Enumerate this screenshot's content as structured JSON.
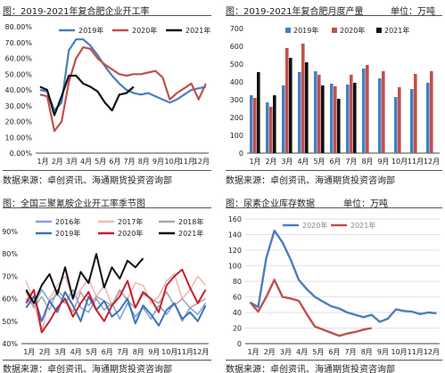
{
  "panels": [
    {
      "title": "图：2019-2021年复合肥企业开工率",
      "unit": "",
      "source": "数据来源：卓创资讯、海通期货投资咨询部"
    },
    {
      "title": "图：2019-2021年复合肥月度产量",
      "unit": "单位：万吨",
      "source": "数据来源：卓创资讯、海通期货投资咨询部"
    },
    {
      "title": "图：全国三聚氰胺企业开工率季节图",
      "unit": "",
      "source": "数据来源：卓创资讯、海通期货投资咨询部"
    },
    {
      "title": "图：尿素企业库存数据",
      "unit": "单位：万吨",
      "source": "数据来源：卓创资讯、海通期货投资咨询部"
    }
  ],
  "chart_data": [
    {
      "type": "line",
      "xticks": [
        "1月",
        "2月",
        "3月",
        "4月",
        "5月",
        "6月",
        "7月",
        "8月",
        "9月",
        "10月",
        "11月",
        "12月"
      ],
      "yticks": [
        "0.00%",
        "10.00%",
        "20.00%",
        "30.00%",
        "40.00%",
        "50.00%",
        "60.00%",
        "70.00%",
        "80.00%"
      ],
      "ylim": [
        0,
        80
      ],
      "legend_position": "top",
      "colors": {
        "2019年": "#4a7ebb",
        "2020年": "#c0504d",
        "2021年": "#111111"
      },
      "series": [
        {
          "name": "2019年",
          "x": [
            0,
            0.5,
            1,
            1.5,
            2,
            2.5,
            3,
            3.5,
            4,
            4.5,
            5,
            5.5,
            6,
            6.5,
            7,
            7.5,
            8,
            8.5,
            9,
            9.5,
            10,
            10.5,
            11,
            11.5
          ],
          "values": [
            40,
            39,
            27,
            32,
            65,
            72,
            72,
            68,
            62,
            55,
            49,
            44,
            40,
            38,
            37,
            38,
            36,
            34,
            32,
            34,
            37,
            40,
            41,
            42
          ]
        },
        {
          "name": "2020年",
          "x": [
            0,
            0.5,
            1,
            1.5,
            2,
            2.5,
            3,
            3.5,
            4,
            4.5,
            5,
            5.5,
            6,
            6.5,
            7,
            7.5,
            8,
            8.5,
            9,
            9.5,
            10,
            10.5,
            11,
            11.5
          ],
          "values": [
            37,
            36,
            14,
            20,
            45,
            60,
            67,
            66,
            60,
            56,
            53,
            50,
            49,
            50,
            50,
            51,
            52,
            48,
            34,
            38,
            41,
            44,
            34,
            44
          ]
        },
        {
          "name": "2021年",
          "x": [
            0,
            0.5,
            1,
            1.5,
            2,
            2.5,
            3,
            3.5,
            4,
            4.5,
            5,
            5.5,
            6,
            6.5
          ],
          "values": [
            42,
            40,
            24,
            36,
            49,
            49,
            44,
            42,
            39,
            32,
            27,
            37,
            38,
            42
          ]
        }
      ]
    },
    {
      "type": "bar",
      "categories": [
        "1月",
        "2月",
        "3月",
        "4月",
        "5月",
        "6月",
        "7月",
        "8月",
        "9月",
        "10月",
        "11月",
        "12月"
      ],
      "yticks": [
        "0",
        "100",
        "200",
        "300",
        "400",
        "500",
        "600",
        "700"
      ],
      "ylim": [
        0,
        700
      ],
      "legend_position": "top",
      "colors": {
        "2019年": "#4a7ebb",
        "2020年": "#c0504d",
        "2021年": "#111111"
      },
      "series": [
        {
          "name": "2019年",
          "values": [
            325,
            285,
            380,
            455,
            460,
            390,
            385,
            475,
            420,
            315,
            360,
            395
          ]
        },
        {
          "name": "2020年",
          "values": [
            310,
            260,
            590,
            615,
            440,
            375,
            440,
            495,
            460,
            370,
            445,
            460
          ]
        },
        {
          "name": "2021年",
          "values": [
            455,
            325,
            535,
            510,
            380,
            305,
            395,
            null,
            null,
            null,
            null,
            null
          ]
        }
      ]
    },
    {
      "type": "line",
      "xticks": [
        "1月",
        "2月",
        "3月",
        "4月",
        "5月",
        "6月",
        "7月",
        "8月",
        "9月",
        "10月",
        "11月",
        "12月"
      ],
      "yticks": [
        "40%",
        "50%",
        "60%",
        "70%",
        "80%",
        "90%"
      ],
      "ylim": [
        40,
        90
      ],
      "legend_position": "top",
      "colors": {
        "2016年": "#7fa6d6",
        "2017年": "#f0b8b8",
        "2018年": "#a8a8a8",
        "2019年": "#3c74b8",
        "2020年": "#cc1f2a",
        "2021年": "#111111"
      },
      "series": [
        {
          "name": "2016年",
          "values": [
            60,
            57,
            64,
            59,
            62,
            58,
            64,
            56,
            54,
            60,
            55,
            58,
            51,
            58,
            52,
            56,
            51,
            57,
            53,
            58,
            50,
            56,
            53,
            58
          ]
        },
        {
          "name": "2017年",
          "values": [
            68,
            58,
            45,
            60,
            66,
            70,
            60,
            64,
            69,
            61,
            66,
            57,
            63,
            60,
            67,
            66,
            58,
            61,
            68,
            71,
            60,
            64,
            70,
            66
          ]
        },
        {
          "name": "2018年",
          "values": [
            63,
            56,
            61,
            55,
            64,
            60,
            54,
            63,
            57,
            61,
            59,
            57,
            64,
            59,
            56,
            62,
            60,
            58,
            63,
            57,
            60,
            56,
            58,
            60
          ]
        },
        {
          "name": "2019年",
          "values": [
            56,
            61,
            50,
            59,
            54,
            63,
            57,
            50,
            61,
            55,
            59,
            52,
            55,
            60,
            49,
            57,
            53,
            48,
            55,
            58,
            51,
            54,
            50,
            57
          ]
        },
        {
          "name": "2020年",
          "values": [
            58,
            64,
            45,
            50,
            56,
            60,
            52,
            58,
            63,
            55,
            50,
            57,
            61,
            68,
            56,
            63,
            60,
            54,
            66,
            70,
            73,
            65,
            58,
            64
          ]
        },
        {
          "name": "2021年",
          "values": [
            64,
            58,
            66,
            71,
            62,
            74,
            60,
            72,
            67,
            80,
            65,
            74,
            69,
            77,
            74,
            78,
            null,
            null,
            null,
            null,
            null,
            null,
            null,
            null
          ]
        }
      ]
    },
    {
      "type": "line",
      "xticks": [
        "1月",
        "2月",
        "3月",
        "4月",
        "5月",
        "6月",
        "7月",
        "8月",
        "9月",
        "10月",
        "11月",
        "12月"
      ],
      "yticks": [
        "0",
        "20",
        "40",
        "60",
        "80",
        "100",
        "120",
        "140",
        "160"
      ],
      "ylim": [
        0,
        160
      ],
      "legend_position": "top",
      "colors": {
        "2020年": "#4a7ebb",
        "2021年": "#c0504d"
      },
      "series": [
        {
          "name": "2020年",
          "values": [
            53,
            47,
            110,
            145,
            130,
            108,
            82,
            70,
            60,
            54,
            48,
            45,
            40,
            37,
            34,
            37,
            28,
            32,
            44,
            42,
            41,
            38,
            40,
            39
          ]
        },
        {
          "name": "2021年",
          "values": [
            53,
            41,
            60,
            82,
            60,
            58,
            55,
            38,
            22,
            18,
            14,
            10,
            13,
            15,
            18,
            20
          ]
        }
      ]
    }
  ]
}
